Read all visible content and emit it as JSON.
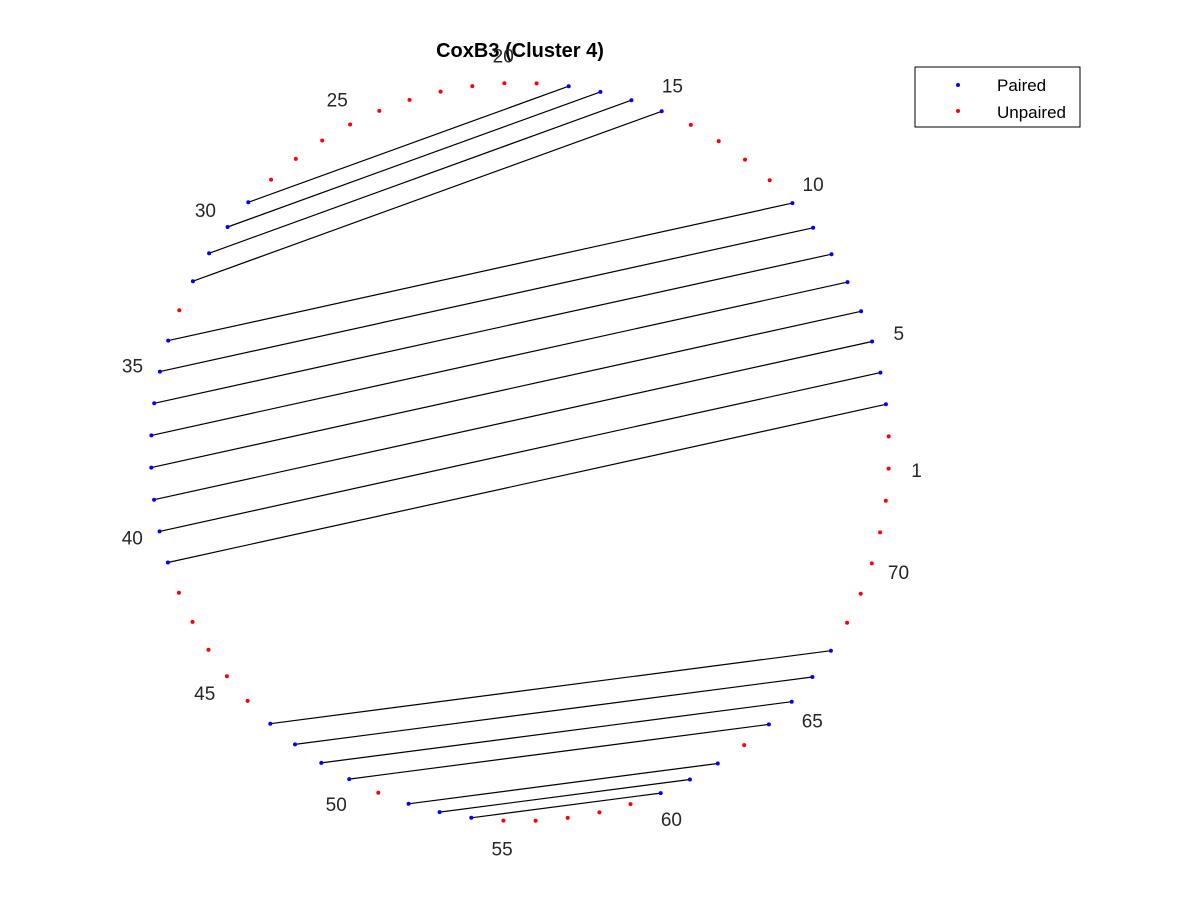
{
  "chart_data": {
    "type": "arc-diagram",
    "title": "CoxB3 (Cluster 4)",
    "n_bases": 72,
    "index_labels": [
      1,
      5,
      10,
      15,
      20,
      25,
      30,
      35,
      40,
      45,
      50,
      55,
      60,
      65,
      70
    ],
    "pairs": [
      [
        3,
        41
      ],
      [
        4,
        40
      ],
      [
        5,
        39
      ],
      [
        6,
        38
      ],
      [
        7,
        37
      ],
      [
        8,
        36
      ],
      [
        9,
        35
      ],
      [
        10,
        34
      ],
      [
        15,
        32
      ],
      [
        16,
        31
      ],
      [
        17,
        30
      ],
      [
        18,
        29
      ],
      [
        47,
        67
      ],
      [
        48,
        66
      ],
      [
        49,
        65
      ],
      [
        50,
        64
      ],
      [
        52,
        62
      ],
      [
        53,
        61
      ],
      [
        54,
        60
      ]
    ],
    "colors": {
      "paired": "#0000ff",
      "unpaired": "#ff0000",
      "line": "#000000"
    },
    "legend": {
      "position": "top-right",
      "entries": [
        {
          "name": "Paired",
          "color": "#0000ff"
        },
        {
          "name": "Unpaired",
          "color": "#ff0000"
        }
      ]
    }
  }
}
